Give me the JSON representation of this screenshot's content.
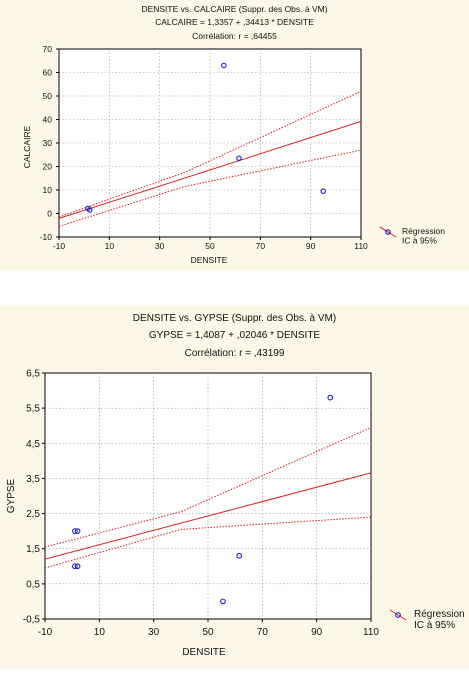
{
  "chart_data": [
    {
      "type": "scatter",
      "title": "DENSITE vs. CALCAIRE (Suppr. des Obs. à VM)",
      "equation": "CALCAIRE = 1,3357 + ,34413 * DENSITE",
      "correlation": "Corrélation: r = ,64455",
      "xlabel": "DENSITE",
      "ylabel": "CALCAIRE",
      "xlim": [
        -10,
        110
      ],
      "ylim": [
        -10,
        70
      ],
      "xticks": [
        "-10",
        "10",
        "30",
        "50",
        "70",
        "90",
        "110"
      ],
      "yticks": [
        "-10",
        "0",
        "10",
        "20",
        "30",
        "40",
        "50",
        "60",
        "70"
      ],
      "grid": true,
      "points": [
        {
          "x": 1.5,
          "y": 2.2
        },
        {
          "x": 2.2,
          "y": 1.5
        },
        {
          "x": 55.5,
          "y": 63
        },
        {
          "x": 61.5,
          "y": 23.5
        },
        {
          "x": 95,
          "y": 9.5
        }
      ],
      "regression": {
        "intercept": 1.3357,
        "slope": 0.34413
      },
      "ci_upper": [
        [
          -10,
          -1.5
        ],
        [
          40,
          17.5
        ],
        [
          110,
          52
        ]
      ],
      "ci_lower": [
        [
          -10,
          -5.5
        ],
        [
          40,
          11.5
        ],
        [
          110,
          27
        ]
      ],
      "legend": [
        "Régression",
        "IC à 95%"
      ],
      "legend_position": "right"
    },
    {
      "type": "scatter",
      "title": "DENSITE vs. GYPSE (Suppr. des Obs. à VM)",
      "equation": "GYPSE = 1,4087 + ,02046 * DENSITE",
      "correlation": "Corrélation: r = ,43199",
      "xlabel": "DENSITE",
      "ylabel": "GYPSE",
      "xlim": [
        -10,
        110
      ],
      "ylim": [
        -0.5,
        6.5
      ],
      "xticks": [
        "-10",
        "10",
        "30",
        "50",
        "70",
        "90",
        "110"
      ],
      "yticks": [
        "-0,5",
        "0,5",
        "1,5",
        "2,5",
        "3,5",
        "4,5",
        "5,5",
        "6,5"
      ],
      "grid": true,
      "points": [
        {
          "x": 1,
          "y": 2
        },
        {
          "x": 2,
          "y": 2
        },
        {
          "x": 1,
          "y": 1
        },
        {
          "x": 2,
          "y": 1
        },
        {
          "x": 55.5,
          "y": 0
        },
        {
          "x": 61.5,
          "y": 1.3
        },
        {
          "x": 95,
          "y": 5.8
        }
      ],
      "regression": {
        "intercept": 1.4087,
        "slope": 0.02046
      },
      "ci_upper": [
        [
          -10,
          1.55
        ],
        [
          40,
          2.55
        ],
        [
          110,
          4.95
        ]
      ],
      "ci_lower": [
        [
          -10,
          0.95
        ],
        [
          40,
          2.05
        ],
        [
          110,
          2.4
        ]
      ],
      "legend": [
        "Régression",
        "IC à 95%"
      ],
      "legend_position": "right"
    }
  ],
  "colors": {
    "regression": "#d42020",
    "points": "#1c1cc8",
    "panel_bg": "#fdf7e8"
  }
}
